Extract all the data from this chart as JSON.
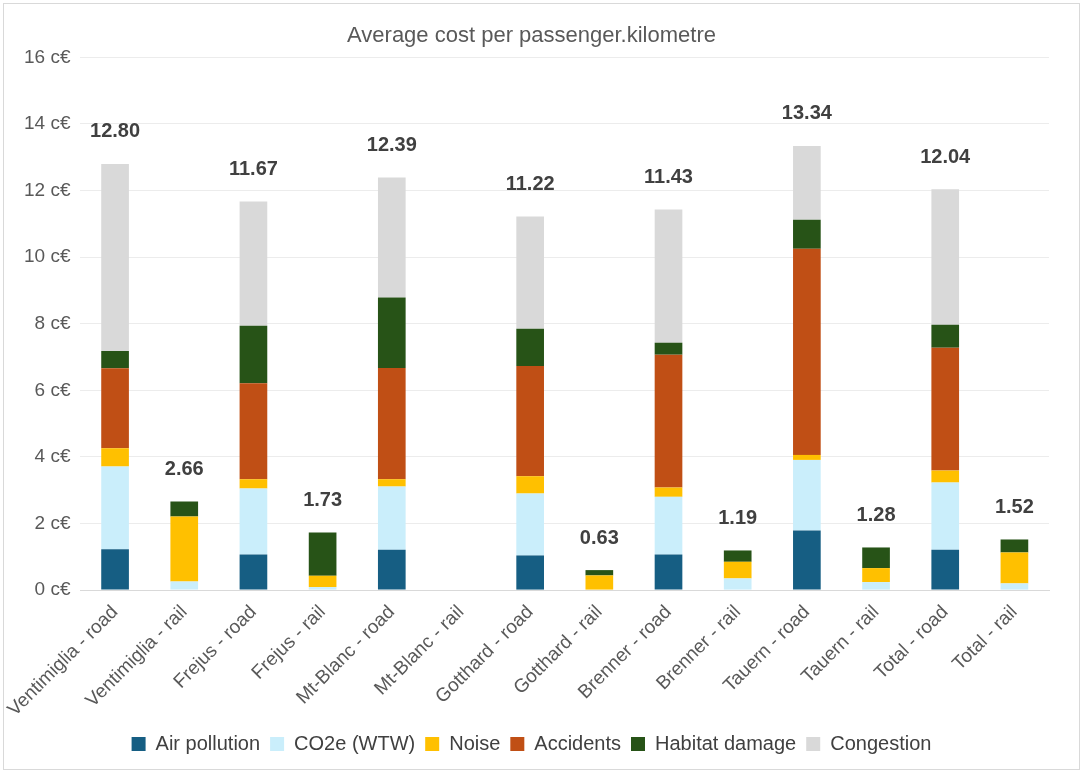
{
  "chart_data": {
    "type": "bar",
    "title": "Average cost per passenger.kilometre",
    "categories": [
      "Ventimiglia - road",
      "Ventimiglia - rail",
      "Frejus - road",
      "Frejus - rail",
      "Mt-Blanc - road",
      "Mt-Blanc - rail",
      "Gotthard - road",
      "Gotthard - rail",
      "Brenner - road",
      "Brenner - rail",
      "Tauern - road",
      "Tauern - rail",
      "Total - road",
      "Total - rail"
    ],
    "stacked": true,
    "series": [
      {
        "name": "Air pollution",
        "color": "#165e83",
        "values": [
          1.23,
          0,
          1.07,
          0,
          1.21,
          null,
          1.04,
          0,
          1.07,
          0,
          1.79,
          0,
          1.21,
          0
        ]
      },
      {
        "name": "CO2e (WTW)",
        "color": "#caeefb",
        "values": [
          2.48,
          0.26,
          1.98,
          0.09,
          1.9,
          null,
          1.86,
          null,
          1.73,
          0.35,
          2.12,
          0.24,
          2.02,
          0.2
        ]
      },
      {
        "name": "Noise",
        "color": "#ffc000",
        "values": [
          0.55,
          1.95,
          0.28,
          0.34,
          0.22,
          null,
          0.52,
          0.44,
          0.28,
          0.5,
          0.15,
          0.42,
          0.36,
          0.93
        ]
      },
      {
        "name": "Accidents",
        "color": "#c04f15",
        "values": [
          2.4,
          0,
          2.88,
          0,
          3.34,
          null,
          3.31,
          0,
          3.99,
          0,
          6.19,
          0,
          3.69,
          0
        ]
      },
      {
        "name": "Habitat damage",
        "color": "#275317",
        "values": [
          0.52,
          0.45,
          1.73,
          1.3,
          2.12,
          null,
          1.12,
          0.16,
          0.36,
          0.34,
          0.87,
          0.62,
          0.69,
          0.39
        ]
      },
      {
        "name": "Congestion",
        "color": "#d9d9d9",
        "values": [
          5.62,
          0,
          3.73,
          0,
          3.6,
          null,
          3.37,
          0,
          4.0,
          0,
          2.22,
          0,
          4.07,
          0
        ]
      }
    ],
    "totals": [
      "12.80",
      "2.66",
      "11.67",
      "1.73",
      "12.39",
      null,
      "11.22",
      "0.63",
      "11.43",
      "1.19",
      "13.34",
      "1.28",
      "12.04",
      "1.52"
    ],
    "ylim": [
      0,
      16
    ],
    "yticks": [
      {
        "value": 0,
        "label": "0 c€"
      },
      {
        "value": 2,
        "label": "2 c€"
      },
      {
        "value": 4,
        "label": "4 c€"
      },
      {
        "value": 6,
        "label": "6 c€"
      },
      {
        "value": 8,
        "label": "8 c€"
      },
      {
        "value": 10,
        "label": "10 c€"
      },
      {
        "value": 12,
        "label": "12 c€"
      },
      {
        "value": 14,
        "label": "14 c€"
      },
      {
        "value": 16,
        "label": "16 c€"
      }
    ],
    "grid": "y",
    "legend": "bottom"
  }
}
